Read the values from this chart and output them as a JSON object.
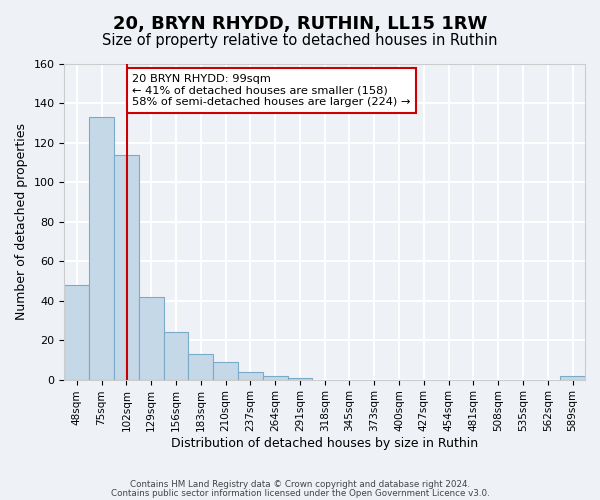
{
  "title": "20, BRYN RHYDD, RUTHIN, LL15 1RW",
  "subtitle": "Size of property relative to detached houses in Ruthin",
  "xlabel": "Distribution of detached houses by size in Ruthin",
  "ylabel": "Number of detached properties",
  "bar_values": [
    48,
    133,
    114,
    42,
    24,
    13,
    9,
    4,
    2,
    1,
    0,
    0,
    0,
    0,
    0,
    0,
    0,
    0,
    0,
    0,
    2
  ],
  "bar_labels": [
    "48sqm",
    "75sqm",
    "102sqm",
    "129sqm",
    "156sqm",
    "183sqm",
    "210sqm",
    "237sqm",
    "264sqm",
    "291sqm",
    "318sqm",
    "345sqm",
    "373sqm",
    "400sqm",
    "427sqm",
    "454sqm",
    "481sqm",
    "508sqm",
    "535sqm",
    "562sqm",
    "589sqm"
  ],
  "bin_edges": [
    34,
    61,
    88,
    115,
    142,
    169,
    196,
    223,
    250,
    277,
    304,
    331,
    358,
    385,
    412,
    439,
    466,
    493,
    520,
    547,
    574,
    601
  ],
  "bar_color": "#c5d8e8",
  "bar_edge_color": "#7aaac8",
  "marker_label": "20 BRYN RHYDD: 99sqm",
  "annotation_line1": "← 41% of detached houses are smaller (158)",
  "annotation_line2": "58% of semi-detached houses are larger (224) →",
  "annotation_box_color": "#ffffff",
  "annotation_box_edge": "#cc0000",
  "marker_line_color": "#cc0000",
  "ylim": [
    0,
    160
  ],
  "yticks": [
    0,
    20,
    40,
    60,
    80,
    100,
    120,
    140,
    160
  ],
  "footer1": "Contains HM Land Registry data © Crown copyright and database right 2024.",
  "footer2": "Contains public sector information licensed under the Open Government Licence v3.0.",
  "bg_color": "#eef2f7",
  "plot_bg_color": "#eef2f7",
  "grid_color": "#ffffff",
  "title_fontsize": 13,
  "subtitle_fontsize": 10.5,
  "label_fontsize": 9,
  "tick_fontsize": 7.5
}
